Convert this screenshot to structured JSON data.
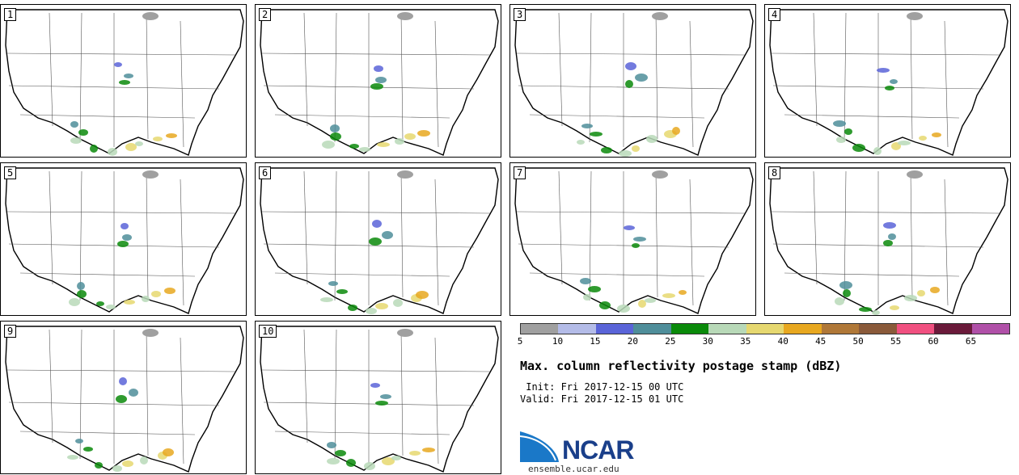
{
  "panels": [
    {
      "label": "1"
    },
    {
      "label": "2"
    },
    {
      "label": "3"
    },
    {
      "label": "4"
    },
    {
      "label": "5"
    },
    {
      "label": "6"
    },
    {
      "label": "7"
    },
    {
      "label": "8"
    },
    {
      "label": "9"
    },
    {
      "label": "10"
    }
  ],
  "colorbar": {
    "colors": [
      "#a0a0a0",
      "#b4bce8",
      "#5a64d8",
      "#4f8e9a",
      "#0a8a0a",
      "#b8d9b8",
      "#e6d870",
      "#e8a820",
      "#b07838",
      "#8a5a3a",
      "#f05080",
      "#6a1a3a",
      "#b050a8"
    ],
    "ticks": [
      "5",
      "10",
      "15",
      "20",
      "25",
      "30",
      "35",
      "40",
      "45",
      "50",
      "55",
      "60",
      "65"
    ]
  },
  "title": "Max. column reflectivity postage stamp (dBZ)",
  "init_line": " Init: Fri 2017-12-15 00 UTC",
  "valid_line": "Valid: Fri 2017-12-15 01 UTC",
  "logo": {
    "text": "NCAR",
    "site": "ensemble.ucar.edu"
  }
}
